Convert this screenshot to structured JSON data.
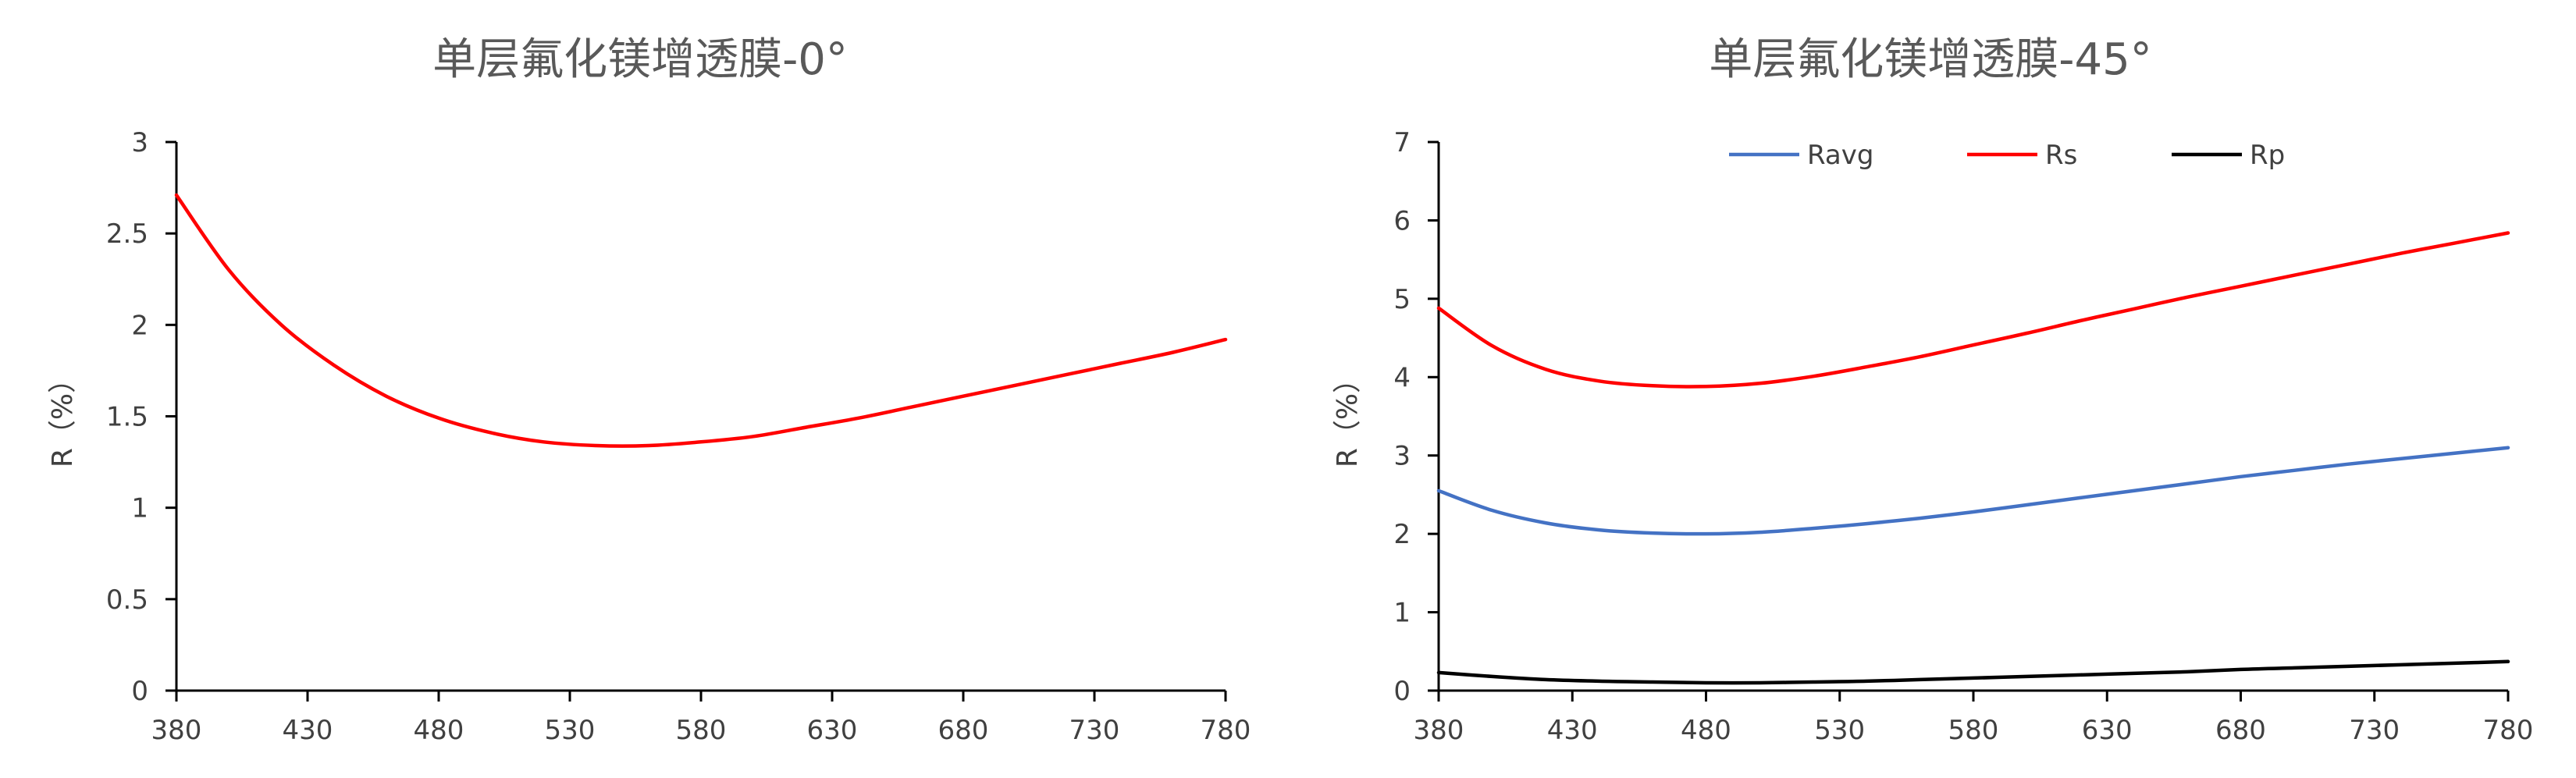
{
  "chart_data": [
    {
      "type": "line",
      "title": "单层氟化镁增透膜-0°",
      "xlabel": "",
      "ylabel": "R（%）",
      "xlim": [
        380,
        780
      ],
      "ylim": [
        0,
        3
      ],
      "xticks": [
        380,
        430,
        480,
        530,
        580,
        630,
        680,
        730,
        780
      ],
      "yticks": [
        0,
        0.5,
        1,
        1.5,
        2,
        2.5,
        3
      ],
      "ytick_labels": [
        "0",
        "0.5",
        "1",
        "1.5",
        "2",
        "2.5",
        "3"
      ],
      "grid": false,
      "legend": null,
      "series": [
        {
          "color": "#ff0000",
          "x": [
            380,
            400,
            420,
            440,
            460,
            480,
            500,
            520,
            540,
            560,
            580,
            600,
            620,
            640,
            660,
            680,
            700,
            720,
            740,
            760,
            780
          ],
          "y": [
            2.71,
            2.3,
            2.0,
            1.78,
            1.61,
            1.49,
            1.41,
            1.36,
            1.34,
            1.34,
            1.36,
            1.39,
            1.44,
            1.49,
            1.55,
            1.61,
            1.67,
            1.73,
            1.79,
            1.85,
            1.92
          ]
        }
      ]
    },
    {
      "type": "line",
      "title": "单层氟化镁增透膜-45°",
      "xlabel": "",
      "ylabel": "R（%）",
      "xlim": [
        380,
        780
      ],
      "ylim": [
        0,
        7
      ],
      "xticks": [
        380,
        430,
        480,
        530,
        580,
        630,
        680,
        730,
        780
      ],
      "yticks": [
        0,
        1,
        2,
        3,
        4,
        5,
        6,
        7
      ],
      "ytick_labels": [
        "0",
        "1",
        "2",
        "3",
        "4",
        "5",
        "6",
        "7"
      ],
      "grid": false,
      "legend": "top",
      "series": [
        {
          "name": "Ravg",
          "color": "#4472c4",
          "x": [
            380,
            400,
            420,
            440,
            460,
            480,
            500,
            520,
            540,
            560,
            580,
            600,
            620,
            640,
            660,
            680,
            700,
            720,
            740,
            760,
            780
          ],
          "y": [
            2.55,
            2.3,
            2.14,
            2.05,
            2.01,
            2.0,
            2.02,
            2.07,
            2.13,
            2.2,
            2.28,
            2.37,
            2.46,
            2.55,
            2.64,
            2.73,
            2.81,
            2.89,
            2.96,
            3.03,
            3.1
          ]
        },
        {
          "name": "Rs",
          "color": "#ff0000",
          "x": [
            380,
            400,
            420,
            440,
            460,
            480,
            500,
            520,
            540,
            560,
            580,
            600,
            620,
            640,
            660,
            680,
            700,
            720,
            740,
            760,
            780
          ],
          "y": [
            4.88,
            4.4,
            4.1,
            3.95,
            3.89,
            3.88,
            3.92,
            4.01,
            4.13,
            4.26,
            4.41,
            4.56,
            4.72,
            4.87,
            5.02,
            5.16,
            5.3,
            5.44,
            5.58,
            5.71,
            5.84
          ]
        },
        {
          "name": "Rp",
          "color": "#000000",
          "x": [
            380,
            400,
            420,
            440,
            460,
            480,
            500,
            520,
            540,
            560,
            580,
            600,
            620,
            640,
            660,
            680,
            700,
            720,
            740,
            760,
            780
          ],
          "y": [
            0.23,
            0.18,
            0.14,
            0.12,
            0.11,
            0.1,
            0.1,
            0.11,
            0.12,
            0.14,
            0.16,
            0.18,
            0.2,
            0.22,
            0.24,
            0.27,
            0.29,
            0.31,
            0.33,
            0.35,
            0.37
          ]
        }
      ]
    }
  ]
}
